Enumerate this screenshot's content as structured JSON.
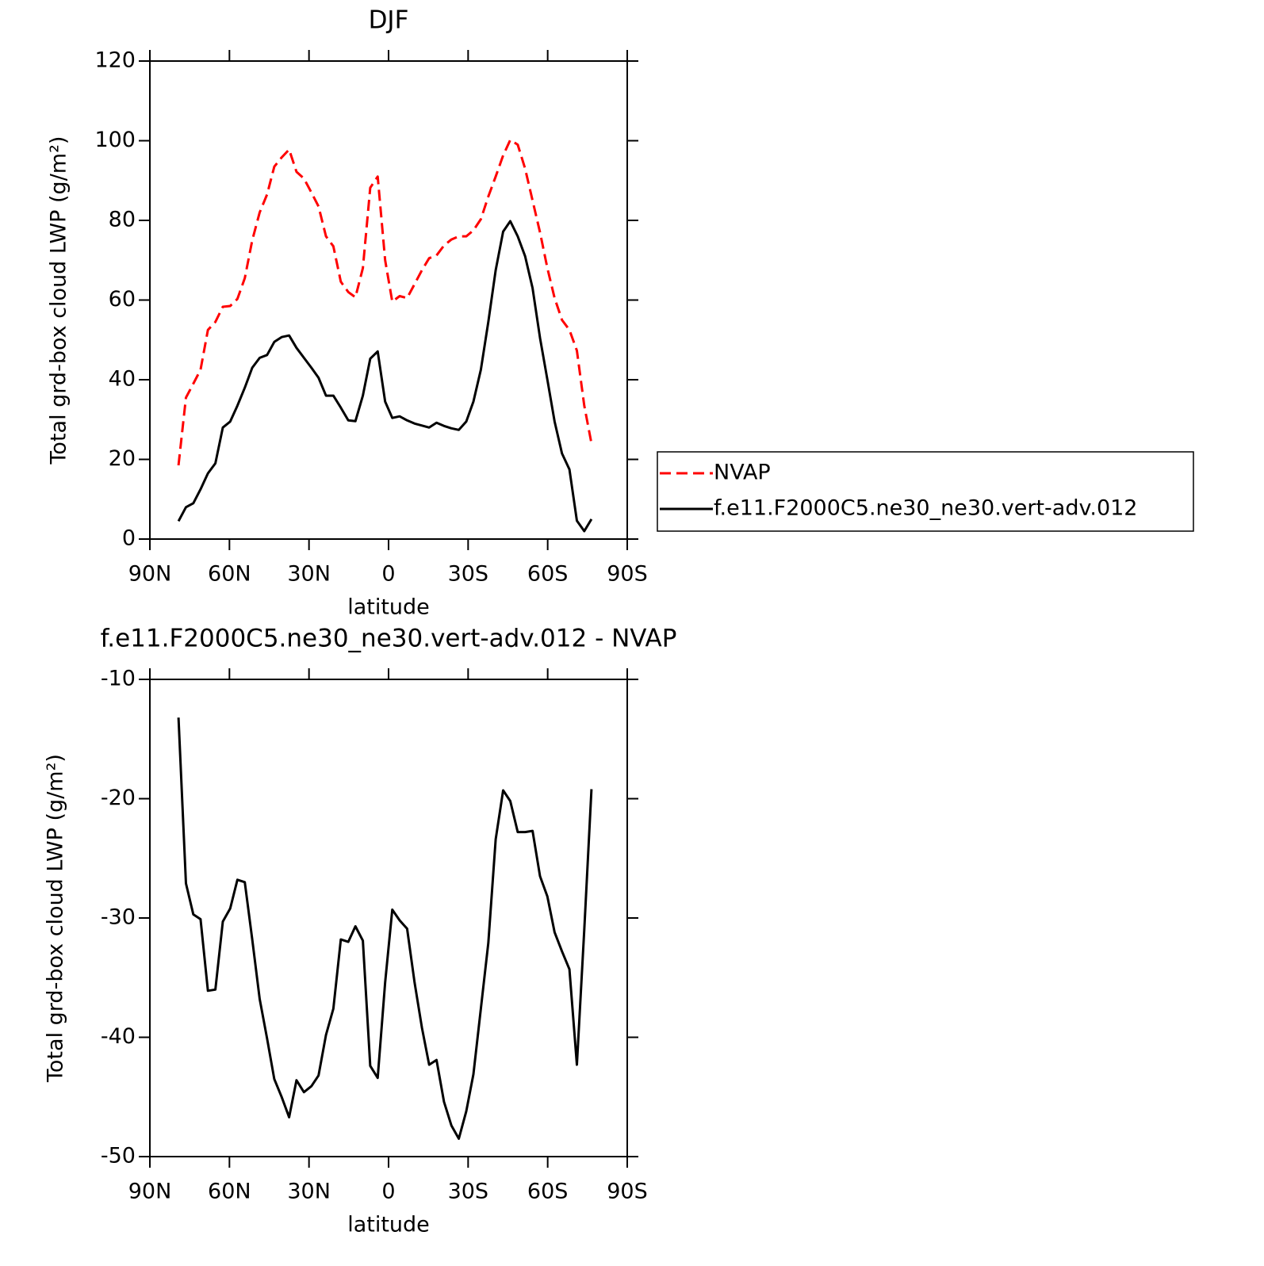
{
  "chart_data": [
    {
      "type": "line",
      "title": "DJF",
      "xlabel": "latitude",
      "ylabel": "Total grd-box cloud LWP (g/m²)",
      "x": [
        79.2,
        76.4,
        73.6,
        70.9,
        68.1,
        65.3,
        62.5,
        59.7,
        57.0,
        54.2,
        51.4,
        48.6,
        45.8,
        43.1,
        40.3,
        37.5,
        34.7,
        31.9,
        29.1,
        26.4,
        23.6,
        20.8,
        18.0,
        15.2,
        12.5,
        9.7,
        6.9,
        4.1,
        1.3,
        -1.4,
        -4.2,
        -7.0,
        -9.8,
        -12.6,
        -15.3,
        -18.1,
        -20.9,
        -23.7,
        -26.5,
        -29.3,
        -32.0,
        -34.8,
        -37.6,
        -40.4,
        -43.2,
        -45.9,
        -48.7,
        -51.5,
        -54.3,
        -57.1,
        -59.9,
        -62.6,
        -65.4,
        -68.2,
        -71.0,
        -73.8,
        -76.5
      ],
      "series": [
        {
          "name": "NVAP",
          "color": "#ff0000",
          "style": "dashed",
          "values": [
            18.5,
            35.5,
            39,
            42.5,
            52.5,
            54.5,
            58.3,
            58.5,
            60.3,
            65.5,
            75,
            82,
            86.5,
            93.5,
            95.8,
            97.8,
            92.2,
            90.5,
            87,
            83.5,
            76,
            73.5,
            64.6,
            62,
            60.7,
            68,
            88.2,
            91,
            70,
            59.6,
            61,
            60.5,
            64,
            67.5,
            70.5,
            71.2,
            73.7,
            75.2,
            76,
            76,
            77.5,
            80.3,
            86,
            91,
            96.3,
            100.2,
            99,
            93,
            85,
            77,
            68,
            60.5,
            55,
            52.5,
            47.3,
            33.5,
            24
          ]
        },
        {
          "name": "f.e11.F2000C5.ne30_ne30.vert-adv.012",
          "color": "#000000",
          "style": "solid",
          "values": [
            4.5,
            8,
            9,
            12.5,
            16.5,
            19,
            28,
            29.5,
            33.5,
            38,
            43,
            45.5,
            46.2,
            49.5,
            50.7,
            51.1,
            48,
            45.5,
            43,
            40.5,
            36,
            36,
            33,
            29.8,
            29.6,
            36,
            45.3,
            47.1,
            34.5,
            30.4,
            30.8,
            29.8,
            29,
            28.5,
            28,
            29.2,
            28.4,
            27.8,
            27.4,
            29.5,
            34.5,
            42.5,
            54.5,
            67.5,
            77.2,
            79.8,
            76,
            71,
            63,
            50.5,
            40,
            29.5,
            21.5,
            17.5,
            4.6,
            2,
            5
          ]
        }
      ],
      "xlim": [
        90,
        -90
      ],
      "xticks": [
        {
          "value": 90,
          "label": "90N"
        },
        {
          "value": 60,
          "label": "60N"
        },
        {
          "value": 30,
          "label": "30N"
        },
        0,
        {
          "value": -30,
          "label": "30S"
        },
        {
          "value": -60,
          "label": "60S"
        },
        {
          "value": -90,
          "label": "90S"
        }
      ],
      "ylim": [
        0,
        120
      ],
      "yticks": [
        0,
        20,
        40,
        60,
        80,
        100,
        120
      ],
      "legend": "right"
    },
    {
      "type": "line",
      "title": "f.e11.F2000C5.ne30_ne30.vert-adv.012 - NVAP",
      "xlabel": "latitude",
      "ylabel": "Total grd-box cloud LWP (g/m²)",
      "x": [
        79.2,
        76.4,
        73.6,
        70.9,
        68.1,
        65.3,
        62.5,
        59.7,
        57.0,
        54.2,
        51.4,
        48.6,
        45.8,
        43.1,
        40.3,
        37.5,
        34.7,
        31.9,
        29.1,
        26.4,
        23.6,
        20.8,
        18.0,
        15.2,
        12.5,
        9.7,
        6.9,
        4.1,
        1.3,
        -1.4,
        -4.2,
        -7.0,
        -9.8,
        -12.6,
        -15.3,
        -18.1,
        -20.9,
        -23.7,
        -26.5,
        -29.3,
        -32.0,
        -34.8,
        -37.6,
        -40.4,
        -43.2,
        -45.9,
        -48.7,
        -51.5,
        -54.3,
        -57.1,
        -59.9,
        -62.6,
        -65.4,
        -68.2,
        -71.0,
        -73.8,
        -76.5
      ],
      "series": [
        {
          "color": "#000000",
          "style": "solid",
          "values": [
            -13.2,
            -27.1,
            -29.7,
            -30.1,
            -36.1,
            -36,
            -30.3,
            -29.2,
            -26.8,
            -27,
            -31.8,
            -36.8,
            -40.1,
            -43.5,
            -45,
            -46.7,
            -43.6,
            -44.6,
            -44.1,
            -43.2,
            -39.8,
            -37.6,
            -31.8,
            -32,
            -30.7,
            -31.9,
            -42.4,
            -43.4,
            -35.4,
            -29.3,
            -30.2,
            -30.9,
            -35.4,
            -39.2,
            -42.3,
            -41.9,
            -45.4,
            -47.4,
            -48.5,
            -46.2,
            -43.1,
            -37.6,
            -32.1,
            -23.4,
            -19.3,
            -20.2,
            -22.8,
            -22.8,
            -22.7,
            -26.5,
            -28.2,
            -31.2,
            -32.8,
            -34.3,
            -42.3,
            -31,
            -19.2
          ]
        }
      ],
      "xlim": [
        90,
        -90
      ],
      "xticks": [
        {
          "value": 90,
          "label": "90N"
        },
        {
          "value": 60,
          "label": "60N"
        },
        {
          "value": 30,
          "label": "30N"
        },
        0,
        {
          "value": -30,
          "label": "30S"
        },
        {
          "value": -60,
          "label": "60S"
        },
        {
          "value": -90,
          "label": "90S"
        }
      ],
      "ylim": [
        -50,
        -10
      ],
      "yticks": [
        -50,
        -40,
        -30,
        -20,
        -10
      ]
    }
  ]
}
